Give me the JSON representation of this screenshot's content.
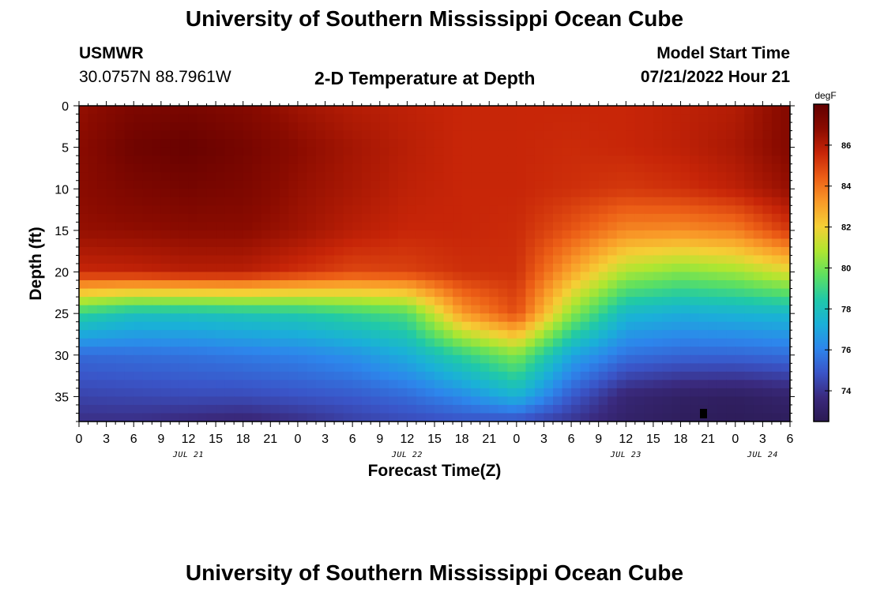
{
  "page": {
    "title": "University of Southern Mississippi Ocean Cube",
    "footer_title": "University of Southern Mississippi Ocean Cube",
    "station": "USMWR",
    "coords": "30.0757N  88.7961W",
    "plot_title": "2-D Temperature at Depth",
    "model_start_label": "Model Start Time",
    "model_start_value": "07/21/2022 Hour 21"
  },
  "chart_data": {
    "type": "heatmap",
    "title": "2-D Temperature at Depth",
    "xlabel": "Forecast Time(Z)",
    "ylabel": "Depth (ft)",
    "x_unit": "forecast hour",
    "xlim": [
      0,
      78
    ],
    "ylim": [
      0,
      38
    ],
    "x_ticks": [
      0,
      3,
      6,
      9,
      12,
      15,
      18,
      21,
      24,
      27,
      30,
      33,
      36,
      39,
      42,
      45,
      48,
      51,
      54,
      57,
      60,
      63,
      66,
      69,
      72,
      75,
      78
    ],
    "x_tick_labels": [
      "0",
      "3",
      "6",
      "9",
      "12",
      "15",
      "18",
      "21",
      "0",
      "3",
      "6",
      "9",
      "12",
      "15",
      "18",
      "21",
      "0",
      "3",
      "6",
      "9",
      "12",
      "15",
      "18",
      "21",
      "0",
      "3",
      "6"
    ],
    "date_labels": [
      {
        "x": 12,
        "label": "JUL 21"
      },
      {
        "x": 36,
        "label": "JUL 22"
      },
      {
        "x": 60,
        "label": "JUL 23"
      },
      {
        "x": 75,
        "label": "JUL 24"
      }
    ],
    "y_ticks": [
      0,
      5,
      10,
      15,
      20,
      25,
      30,
      35
    ],
    "colorbar": {
      "label": "degF",
      "range": [
        72.5,
        88
      ],
      "ticks": [
        74,
        76,
        78,
        80,
        82,
        84,
        86
      ],
      "colors": [
        "#2b1a52",
        "#3a2a7e",
        "#3a55c8",
        "#2d86ec",
        "#1ab0d8",
        "#20c9a8",
        "#5ee060",
        "#b0e630",
        "#f5cf35",
        "#f99a28",
        "#ec5e16",
        "#c72508",
        "#8a0b00",
        "#620000"
      ]
    },
    "depths_ft": [
      0,
      5,
      10,
      15,
      20,
      25,
      30,
      35,
      38
    ],
    "times_hr": [
      0,
      6,
      12,
      18,
      24,
      30,
      36,
      42,
      48,
      54,
      60,
      66,
      72,
      78
    ],
    "values_degF": [
      [
        86.6,
        87.2,
        87.3,
        87.0,
        86.4,
        86.0,
        85.8,
        85.6,
        85.6,
        85.6,
        85.6,
        85.8,
        86.0,
        87.0
      ],
      [
        86.8,
        87.6,
        87.8,
        87.4,
        86.8,
        86.3,
        85.9,
        85.6,
        85.6,
        85.5,
        85.6,
        85.8,
        86.2,
        87.0
      ],
      [
        86.8,
        87.2,
        87.4,
        87.2,
        86.6,
        86.2,
        85.8,
        85.6,
        85.6,
        85.4,
        85.2,
        85.4,
        85.8,
        86.6
      ],
      [
        86.6,
        86.7,
        86.8,
        86.8,
        86.4,
        85.9,
        85.6,
        85.6,
        85.5,
        84.6,
        83.6,
        83.5,
        83.8,
        85.2
      ],
      [
        85.6,
        85.7,
        85.9,
        85.9,
        85.4,
        84.9,
        85.0,
        85.4,
        85.4,
        83.0,
        80.8,
        80.2,
        80.6,
        81.6
      ],
      [
        78.8,
        78.0,
        78.0,
        78.2,
        78.4,
        78.9,
        79.4,
        83.2,
        84.8,
        80.4,
        77.6,
        77.2,
        77.4,
        77.6
      ],
      [
        75.4,
        75.5,
        75.6,
        75.8,
        76.0,
        76.4,
        77.2,
        78.8,
        80.2,
        77.0,
        75.6,
        75.3,
        75.3,
        75.5
      ],
      [
        74.4,
        74.5,
        74.6,
        74.6,
        74.8,
        75.0,
        75.4,
        76.2,
        77.4,
        75.0,
        73.4,
        73.0,
        72.9,
        73.2
      ],
      [
        73.8,
        73.8,
        73.6,
        73.4,
        73.8,
        74.3,
        74.6,
        74.8,
        74.7,
        74.0,
        73.1,
        72.8,
        72.7,
        72.8
      ]
    ]
  }
}
